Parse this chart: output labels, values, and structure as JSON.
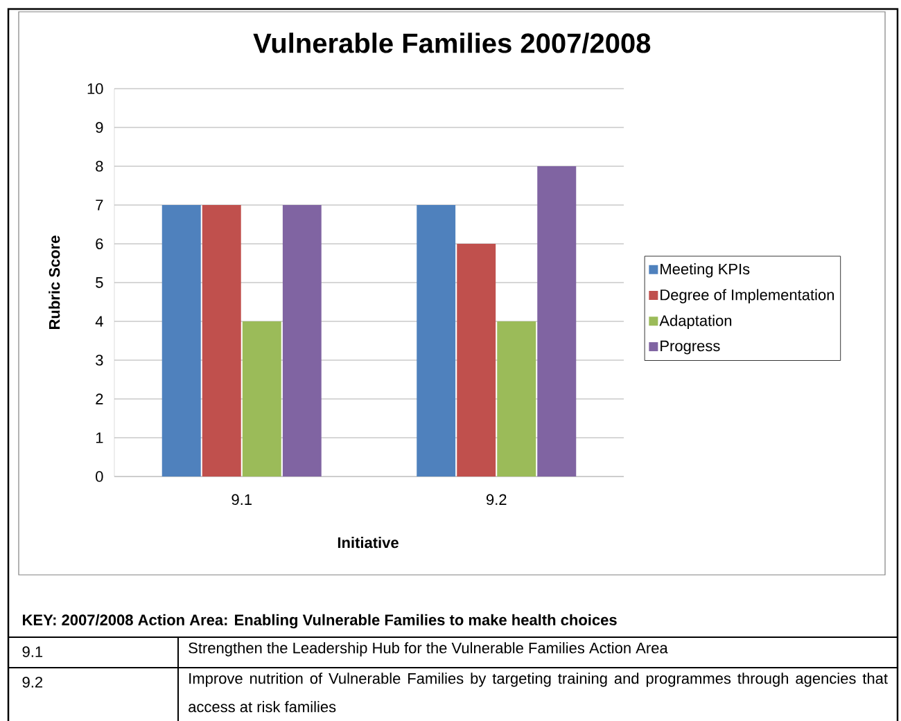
{
  "chart_data": {
    "type": "bar",
    "title": "Vulnerable Families 2007/2008",
    "xlabel": "Initiative",
    "ylabel": "Rubric Score",
    "categories": [
      "9.1",
      "9.2"
    ],
    "series": [
      {
        "name": "Meeting KPIs",
        "color": "#4f81bd",
        "values": [
          7,
          7
        ]
      },
      {
        "name": "Degree of Implementation",
        "color": "#c0504d",
        "values": [
          7,
          6
        ]
      },
      {
        "name": "Adaptation",
        "color": "#9bbb59",
        "values": [
          4,
          4
        ]
      },
      {
        "name": "Progress",
        "color": "#8064a2",
        "values": [
          7,
          8
        ]
      }
    ],
    "ylim": [
      0,
      10
    ],
    "yticks": [
      0,
      1,
      2,
      3,
      4,
      5,
      6,
      7,
      8,
      9,
      10
    ],
    "grid": "y",
    "legend": "right",
    "annotations": [
      "KEY: 2007/2008 Action Area: Enabling Vulnerable Families to make health choices",
      "9.1",
      "Strengthen the Leadership Hub for the Vulnerable Families Action Area",
      "9.2",
      "Improve nutrition of Vulnerable Families by targeting training and programmes through agencies that access at risk families"
    ]
  }
}
